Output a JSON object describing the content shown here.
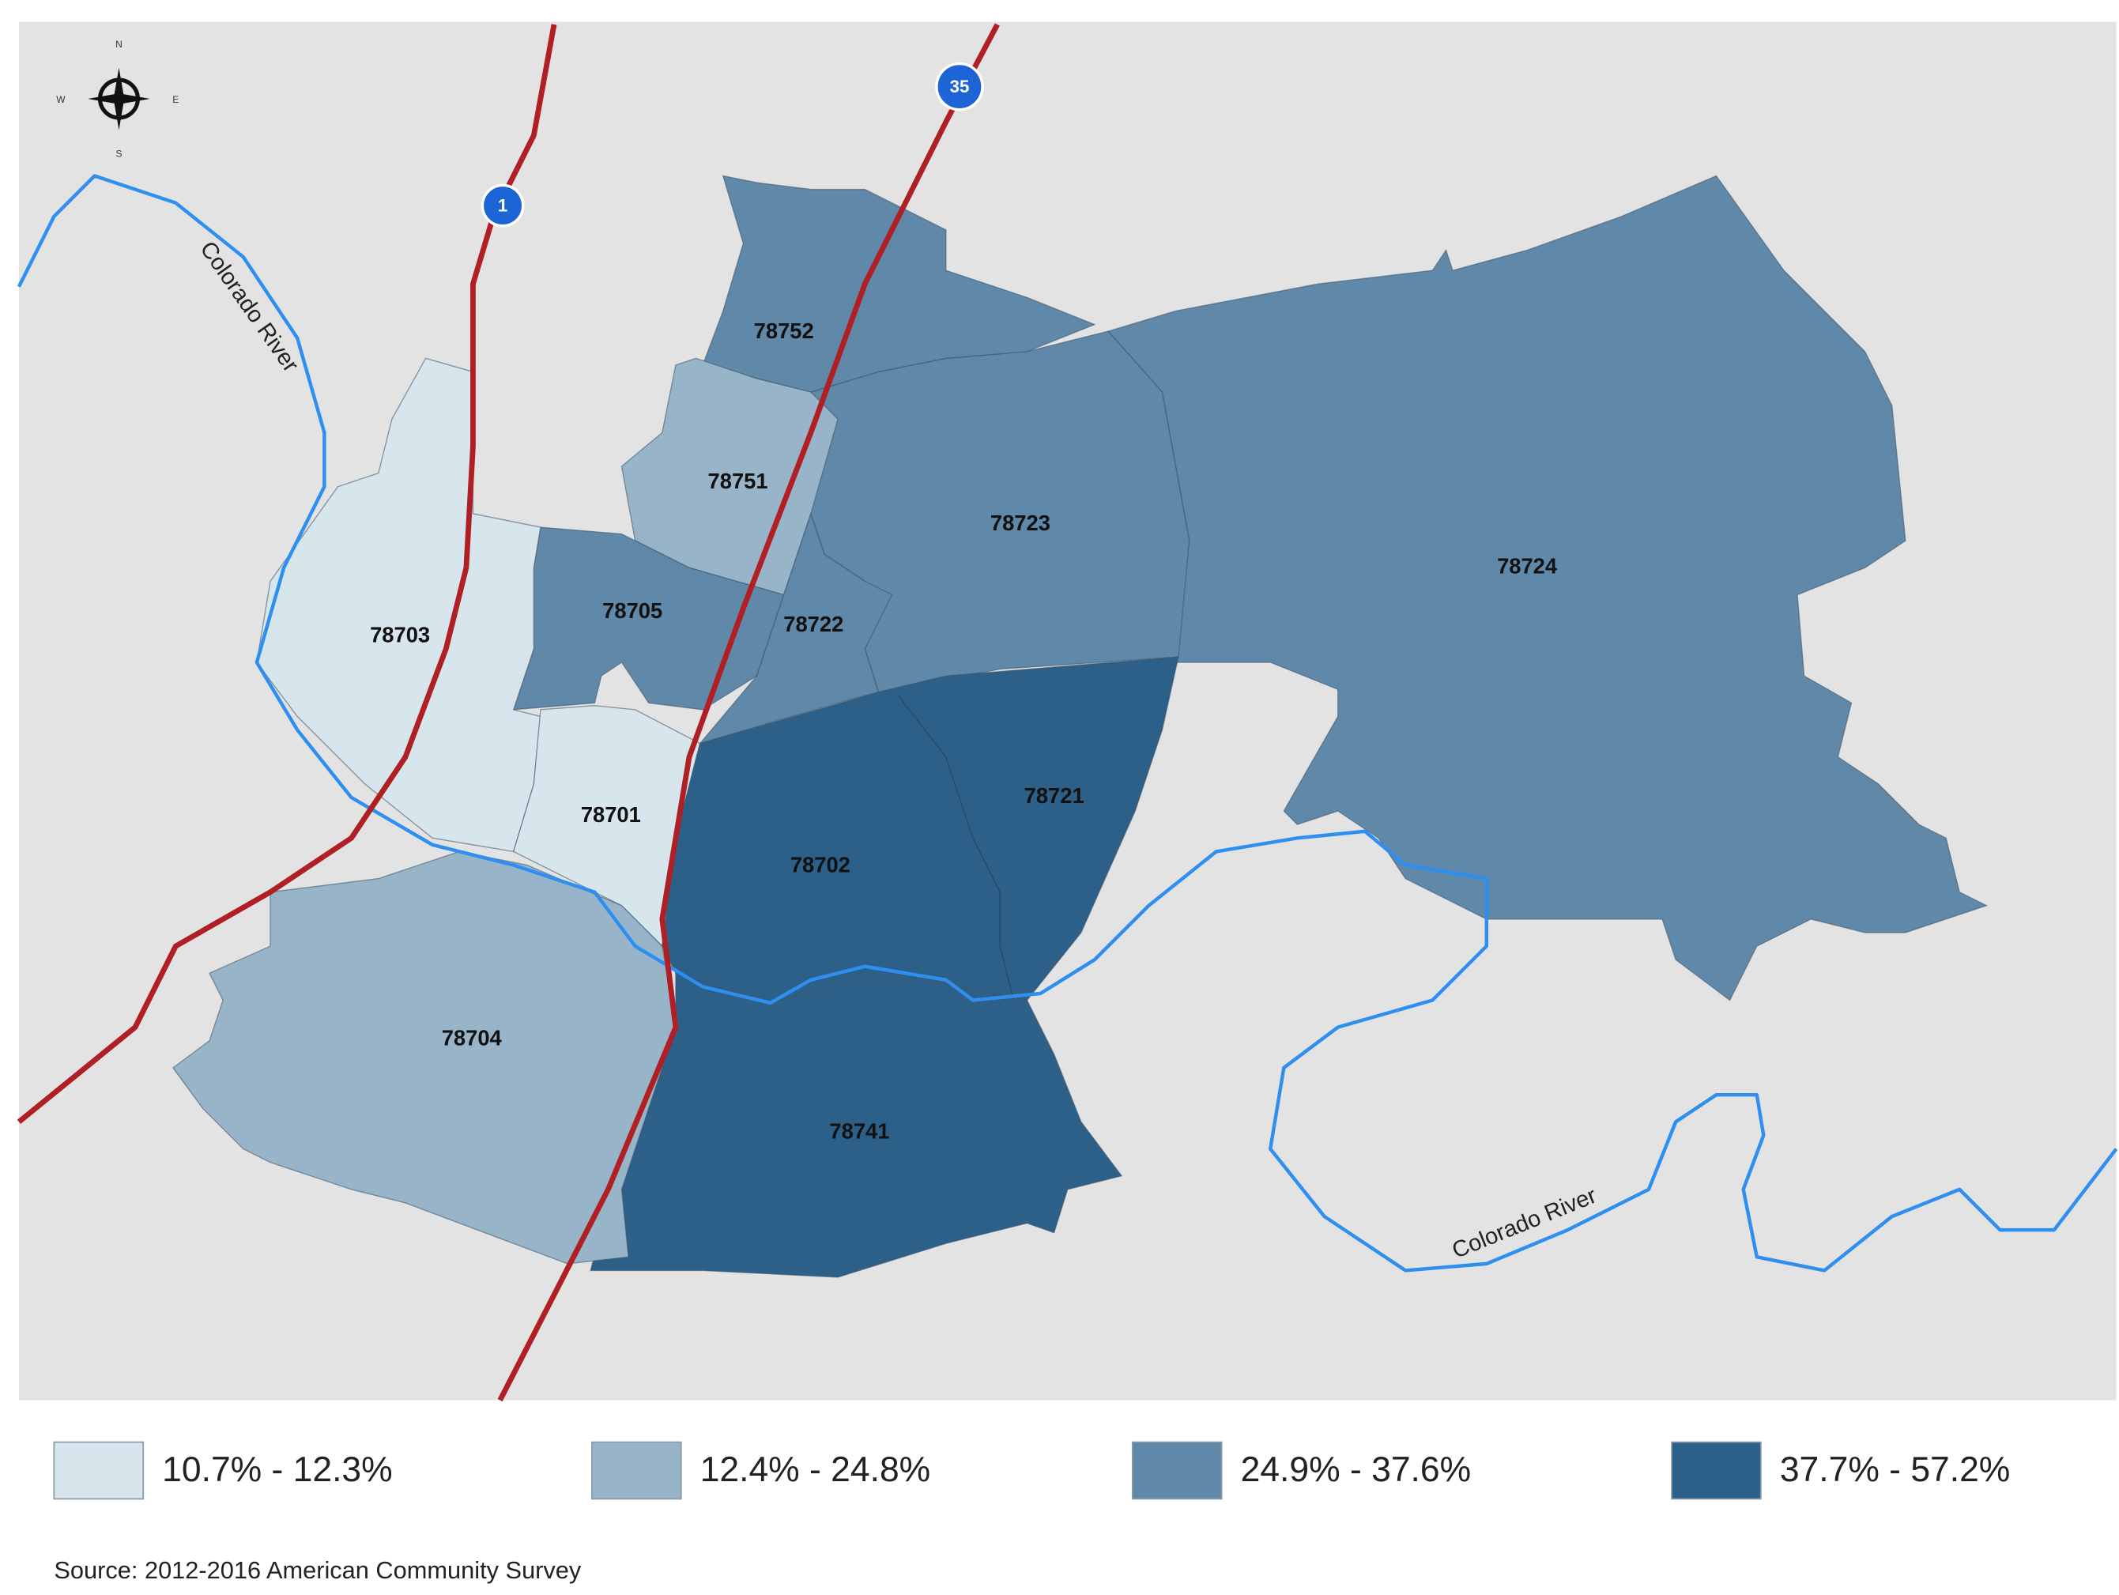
{
  "compass": {
    "north": "N",
    "east": "E",
    "south": "S",
    "west": "W"
  },
  "highways": [
    "1",
    "35"
  ],
  "rivers": [
    "Colorado River",
    "Colorado River"
  ],
  "zip_codes": [
    "78752",
    "78751",
    "78723",
    "78724",
    "78705",
    "78722",
    "78703",
    "78701",
    "78721",
    "78702",
    "78704",
    "78741"
  ],
  "legend": [
    {
      "label": "10.7% - 12.3%",
      "color": "#d7e5ec"
    },
    {
      "label": "12.4% - 24.8%",
      "color": "#98b4c9"
    },
    {
      "label": "24.9% - 37.6%",
      "color": "#6088a8"
    },
    {
      "label": "37.7% - 57.2%",
      "color": "#2d6088"
    }
  ],
  "source": "Source: 2012-2016 American Community Survey"
}
